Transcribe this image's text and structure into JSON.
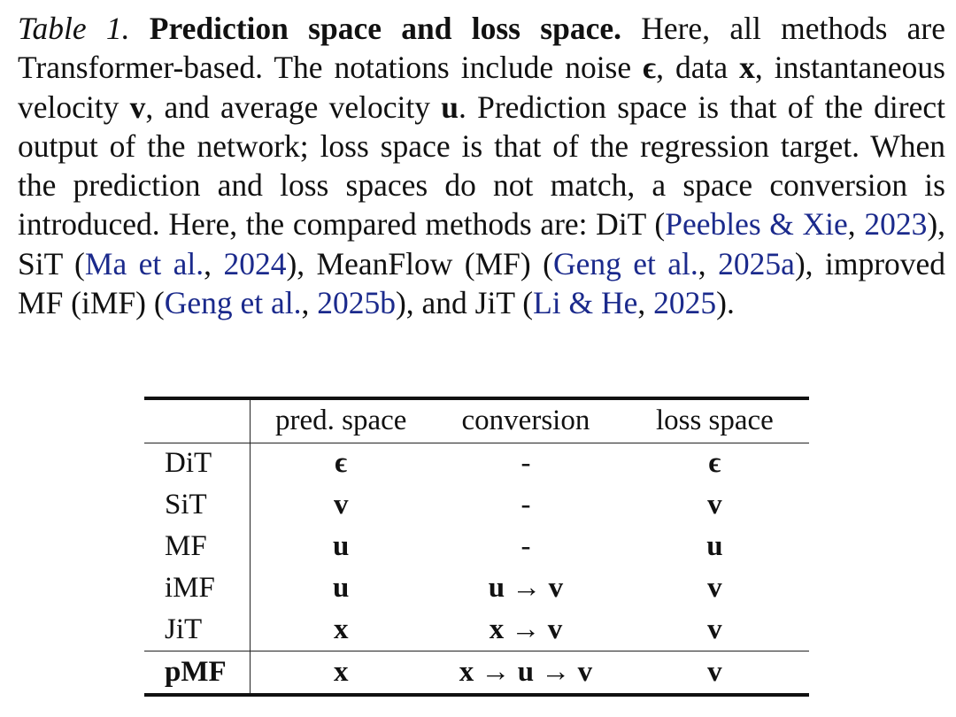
{
  "caption": {
    "label": "Table 1.",
    "heading": "Prediction space and loss space.",
    "t1": " Here, all methods are Transformer-based. The notations include noise ",
    "sym_eps": "ϵ",
    "t2": ", data ",
    "sym_x": "x",
    "t3": ", instantaneous velocity ",
    "sym_v": "v",
    "t4": ", and average velocity ",
    "sym_u": "u",
    "t5": ". Prediction space is that of the direct output of the network; loss space is that of the regression target. When the prediction and loss spaces do not match, a space conversion is introduced. Here, the compared methods are: DiT (",
    "cite1_a": "Peebles & Xie",
    "sep1": ", ",
    "cite1_b": "2023",
    "t6": "), SiT (",
    "cite2_a": "Ma et al.",
    "sep2": ", ",
    "cite2_b": "2024",
    "t7": "), MeanFlow (MF) (",
    "cite3_a": "Geng et al.",
    "sep3": ", ",
    "cite3_b": "2025a",
    "t8": "), improved MF (iMF) (",
    "cite4_a": "Geng et al.",
    "sep4": ", ",
    "cite4_b": "2025b",
    "t9": "), and JiT (",
    "cite5_a": "Li & He",
    "sep5": ", ",
    "cite5_b": "2025",
    "t10": ")."
  },
  "table": {
    "headers": [
      "",
      "pred. space",
      "conversion",
      "loss space"
    ],
    "rows": [
      {
        "method": "DiT",
        "pred": "ϵ",
        "conv": "-",
        "loss": "ϵ"
      },
      {
        "method": "SiT",
        "pred": "v",
        "conv": "-",
        "loss": "v"
      },
      {
        "method": "MF",
        "pred": "u",
        "conv": "-",
        "loss": "u"
      },
      {
        "method": "iMF",
        "pred": "u",
        "conv": "u → v",
        "loss": "v"
      },
      {
        "method": "JiT",
        "pred": "x",
        "conv": "x → v",
        "loss": "v"
      },
      {
        "method": "pMF",
        "pred": "x",
        "conv": "x → u → v",
        "loss": "v"
      }
    ]
  }
}
